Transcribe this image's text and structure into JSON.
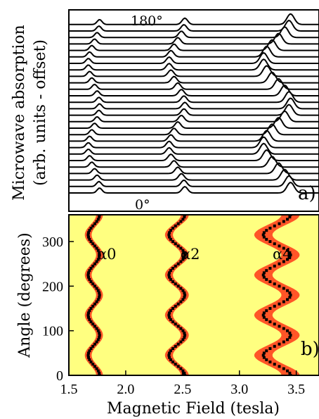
{
  "chart_data": [
    {
      "type": "line",
      "panel_label": "a)",
      "ylabel_line1": "Microwave absorption",
      "ylabel_line2": "(arb. units - offset)",
      "annotation_top": "180°",
      "annotation_bottom": "0°",
      "xlim": [
        1.5,
        3.7
      ],
      "offset_curves": 27,
      "angle_range_deg": [
        0,
        180
      ]
    },
    {
      "type": "heatmap",
      "panel_label": "b)",
      "xlabel": "Magnetic Field (tesla)",
      "ylabel": "Angle (degrees)",
      "xlim": [
        1.5,
        3.7
      ],
      "ylim": [
        0,
        360
      ],
      "xticks": [
        "1.5",
        "2.0",
        "2.5",
        "3.0",
        "3.5"
      ],
      "yticks": [
        "0",
        "100",
        "200",
        "300"
      ],
      "background_color": "#ffff80",
      "intensity_color": "#ff2a10",
      "fit_color": "#000000",
      "series": [
        {
          "name": "α0",
          "center": 1.72,
          "amplitude": 0.05
        },
        {
          "name": "α2",
          "center": 2.45,
          "amplitude": 0.07
        },
        {
          "name": "α4",
          "center": 3.33,
          "amplitude": 0.12
        }
      ]
    }
  ]
}
